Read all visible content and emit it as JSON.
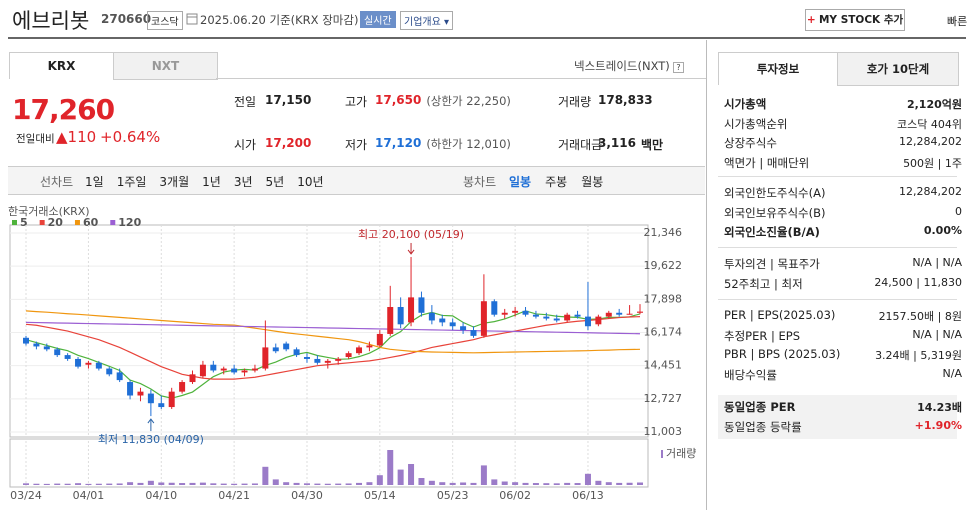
{
  "header": {
    "name": "에브리봇",
    "code": "270660",
    "market": "코스닥",
    "date": "2025.06.20 기준(KRX 장마감)",
    "realtime": "실시간",
    "overview": "기업개요",
    "mystock": "MY STOCK 추가",
    "quick": "빠른"
  },
  "market_tabs": [
    "KRX",
    "NXT"
  ],
  "nxt_link": "넥스트레이드(NXT)",
  "price": {
    "current": "17,260",
    "change_label": "전일대비",
    "change": "110",
    "rate": "+0.64%"
  },
  "quote": [
    {
      "label": "전일",
      "value": "17,150"
    },
    {
      "label": "고가",
      "value": "17,650",
      "note": "(상한가 22,250)"
    },
    {
      "label": "거래량",
      "value": "178,833"
    },
    {
      "label": "시가",
      "value": "17,200"
    },
    {
      "label": "저가",
      "value": "17,120",
      "note": "(하한가 12,010)"
    },
    {
      "label": "거래대금",
      "value": "3,116",
      "unit": "백만"
    }
  ],
  "line_chart_label": "선차트",
  "periods": [
    "1일",
    "1주일",
    "3개월",
    "1년",
    "3년",
    "5년",
    "10년"
  ],
  "candle_label": "봉차트",
  "candle_periods": [
    "일봉",
    "주봉",
    "월봉"
  ],
  "side": {
    "tabs": [
      "투자정보",
      "호가 10단계"
    ],
    "groups": [
      [
        {
          "label": "시가총액",
          "value": "2,120억원"
        },
        {
          "label": "시가총액순위",
          "value": "코스닥 404위"
        },
        {
          "label": "상장주식수",
          "value": "12,284,202"
        },
        {
          "label": "액면가 | 매매단위",
          "value": "500원 | 1주"
        }
      ],
      [
        {
          "label": "외국인한도주식수(A)",
          "value": "12,284,202"
        },
        {
          "label": "외국인보유주식수(B)",
          "value": "0"
        },
        {
          "label": "외국인소진율(B/A)",
          "value": "0.00%"
        }
      ],
      [
        {
          "label": "투자의견 | 목표주가",
          "value": "N/A | N/A"
        },
        {
          "label": "52주최고 | 최저",
          "value": "24,500 | 11,830"
        }
      ],
      [
        {
          "label": "PER | EPS(2025.03)",
          "value": "2157.50배 | 8원"
        },
        {
          "label": "추정PER | EPS",
          "value": "N/A | N/A"
        },
        {
          "label": "PBR | BPS (2025.03)",
          "value": "3.24배 | 5,319원"
        },
        {
          "label": "배당수익률",
          "value": "N/A"
        }
      ],
      [
        {
          "label": "동일업종 PER",
          "value": "14.23배"
        },
        {
          "label": "동일업종 등락률",
          "value": "+1.90%"
        }
      ]
    ]
  },
  "chart_data": {
    "type": "candlestick",
    "legend_title": "한국거래소(KRX)",
    "categories": [
      "03/24",
      null,
      null,
      null,
      null,
      null,
      "04/01",
      null,
      null,
      null,
      null,
      null,
      null,
      "04/10",
      null,
      null,
      null,
      null,
      null,
      null,
      "04/21",
      null,
      null,
      null,
      null,
      null,
      null,
      "04/30",
      null,
      null,
      null,
      null,
      null,
      null,
      "05/14",
      null,
      null,
      null,
      null,
      null,
      null,
      "05/23",
      null,
      null,
      null,
      null,
      null,
      "06/02",
      null,
      null,
      null,
      null,
      null,
      null,
      "06/13",
      null,
      null,
      null,
      null,
      null
    ],
    "open": [
      15900,
      15600,
      15450,
      15300,
      15000,
      14800,
      14500,
      14600,
      14300,
      14100,
      13600,
      12900,
      13000,
      12500,
      12300,
      13100,
      13600,
      13900,
      14500,
      14200,
      14300,
      14100,
      14200,
      14300,
      15400,
      15600,
      15300,
      14900,
      14800,
      14600,
      14700,
      14900,
      15100,
      15400,
      15500,
      16100,
      17500,
      16700,
      18000,
      17200,
      16900,
      16700,
      16500,
      16300,
      16000,
      17800,
      17100,
      17200,
      17300,
      17100,
      17000,
      16900,
      16800,
      17100,
      17000,
      16600,
      17000,
      17200,
      17150,
      17200
    ],
    "high": [
      16000,
      15700,
      15600,
      15400,
      15100,
      14900,
      14700,
      14700,
      14400,
      14300,
      13700,
      13300,
      13200,
      12900,
      13300,
      13700,
      14200,
      14700,
      14700,
      14400,
      14500,
      14300,
      14500,
      16800,
      15600,
      15700,
      15400,
      15100,
      15000,
      14800,
      14900,
      15200,
      15500,
      15700,
      16300,
      18600,
      18000,
      20100,
      18300,
      17600,
      17100,
      16900,
      16700,
      16500,
      19200,
      17900,
      17400,
      17500,
      17500,
      17300,
      17200,
      17100,
      17200,
      17300,
      18800,
      17100,
      17300,
      17400,
      17600,
      17650
    ],
    "low": [
      15500,
      15300,
      15200,
      14900,
      14700,
      14300,
      14300,
      14200,
      13900,
      13600,
      12700,
      12600,
      11830,
      12200,
      12200,
      13000,
      13500,
      13800,
      14100,
      14000,
      14000,
      13900,
      14100,
      14200,
      15100,
      15200,
      14900,
      14600,
      14500,
      14300,
      14500,
      14800,
      15000,
      15200,
      15400,
      16000,
      16400,
      16500,
      17000,
      16600,
      16500,
      16300,
      16100,
      15900,
      15900,
      17000,
      16900,
      17000,
      17000,
      16900,
      16800,
      16700,
      16700,
      16900,
      16300,
      16500,
      16900,
      17000,
      17100,
      17120
    ],
    "close": [
      15600,
      15450,
      15300,
      15000,
      14800,
      14400,
      14600,
      14300,
      14000,
      13700,
      12900,
      13100,
      12500,
      12300,
      13100,
      13600,
      14000,
      14500,
      14200,
      14300,
      14100,
      14200,
      14300,
      15400,
      15200,
      15300,
      15000,
      14800,
      14600,
      14700,
      14800,
      15100,
      15400,
      15500,
      16100,
      17500,
      16600,
      18000,
      17200,
      16800,
      16700,
      16500,
      16300,
      16000,
      17800,
      17100,
      17200,
      17300,
      17100,
      17000,
      16900,
      16800,
      17100,
      17000,
      16500,
      17000,
      17200,
      17100,
      17150,
      17260
    ],
    "volume": [
      120000,
      90000,
      80000,
      100000,
      90000,
      130000,
      80000,
      90000,
      100000,
      110000,
      200000,
      150000,
      300000,
      180000,
      160000,
      140000,
      150000,
      170000,
      120000,
      100000,
      90000,
      100000,
      110000,
      1300000,
      400000,
      200000,
      150000,
      120000,
      100000,
      90000,
      100000,
      110000,
      150000,
      200000,
      700000,
      2500000,
      1100000,
      1500000,
      500000,
      300000,
      200000,
      150000,
      180000,
      150000,
      1400000,
      400000,
      250000,
      200000,
      150000,
      140000,
      130000,
      120000,
      150000,
      140000,
      800000,
      300000,
      200000,
      150000,
      160000,
      178833
    ],
    "up_color": "#e0242a",
    "down_color": "#1f6fd6",
    "moving_averages": [
      {
        "name": "5",
        "color": "#4fb33c",
        "values": [
          15800,
          15650,
          15500,
          15350,
          15230,
          14990,
          14820,
          14620,
          14420,
          14200,
          13700,
          13520,
          13240,
          12880,
          12760,
          12900,
          13080,
          13480,
          13880,
          14120,
          14220,
          14260,
          14220,
          14460,
          14640,
          14880,
          15040,
          15140,
          14980,
          14880,
          14780,
          14800,
          14920,
          15100,
          15380,
          15920,
          16220,
          16740,
          17080,
          17220,
          17060,
          17040,
          16700,
          16460,
          16660,
          16740,
          16880,
          17080,
          17300,
          17140,
          17100,
          17020,
          16980,
          16960,
          16860,
          16880,
          16960,
          16960,
          16990,
          17140
        ]
      },
      {
        "name": "20",
        "color": "#e8433a",
        "values": [
          16600,
          16550,
          16450,
          16350,
          16250,
          16100,
          15950,
          15800,
          15600,
          15400,
          15150,
          14900,
          14650,
          14400,
          14200,
          14000,
          13900,
          13800,
          13750,
          13750,
          13750,
          13800,
          13850,
          13950,
          14050,
          14150,
          14250,
          14350,
          14450,
          14500,
          14550,
          14600,
          14650,
          14700,
          14780,
          14880,
          14980,
          15100,
          15250,
          15400,
          15500,
          15600,
          15700,
          15800,
          15950,
          16050,
          16150,
          16250,
          16350,
          16450,
          16550,
          16620,
          16700,
          16760,
          16800,
          16850,
          16900,
          16950,
          16980,
          17000
        ]
      },
      {
        "name": "60",
        "color": "#f0960f",
        "values": [
          17300,
          17260,
          17230,
          17190,
          17150,
          17120,
          17080,
          17040,
          17000,
          16960,
          16920,
          16880,
          16840,
          16800,
          16760,
          16720,
          16680,
          16640,
          16600,
          16580,
          16560,
          16480,
          16400,
          16320,
          16240,
          16160,
          16100,
          16040,
          15980,
          15920,
          15860,
          15800,
          15700,
          15560,
          15400,
          15300,
          15250,
          15200,
          15180,
          15160,
          15150,
          15140,
          15130,
          15120,
          15130,
          15140,
          15150,
          15160,
          15170,
          15180,
          15190,
          15200,
          15210,
          15220,
          15230,
          15250,
          15260,
          15280,
          15290,
          15300
        ]
      },
      {
        "name": "120",
        "color": "#9b5fd3",
        "values": [
          16700,
          16690,
          16680,
          16670,
          16660,
          16650,
          16640,
          16630,
          16620,
          16610,
          16600,
          16590,
          16580,
          16570,
          16560,
          16550,
          16540,
          16530,
          16520,
          16510,
          16500,
          16490,
          16480,
          16470,
          16460,
          16450,
          16440,
          16430,
          16420,
          16410,
          16400,
          16390,
          16380,
          16370,
          16360,
          16350,
          16340,
          16330,
          16320,
          16310,
          16300,
          16290,
          16280,
          16270,
          16260,
          16250,
          16240,
          16230,
          16220,
          16210,
          16200,
          16190,
          16180,
          16170,
          16160,
          16150,
          16140,
          16130,
          16120,
          16110
        ]
      }
    ],
    "ylim": [
      11003,
      21346
    ],
    "yticks": [
      {
        "value": 21346,
        "label": "21,346"
      },
      {
        "value": 19622,
        "label": "19,622"
      },
      {
        "value": 17898,
        "label": "17,898"
      },
      {
        "value": 16174,
        "label": "16,174"
      },
      {
        "value": 14451,
        "label": "14,451"
      },
      {
        "value": 12727,
        "label": "12,727"
      },
      {
        "value": 11003,
        "label": "11,003"
      }
    ],
    "grid": true,
    "volume_label": "거래량",
    "volume_color": "#9b7bc8",
    "volume_ylim": [
      0,
      3000000
    ],
    "annotations": [
      {
        "text": "최고 20,100 (05/19)",
        "value": 20100,
        "color": "#c0282d",
        "field": "high"
      },
      {
        "text": "최저 11,830 (04/09)",
        "value": 11830,
        "color": "#2a64a8",
        "field": "low"
      }
    ]
  }
}
